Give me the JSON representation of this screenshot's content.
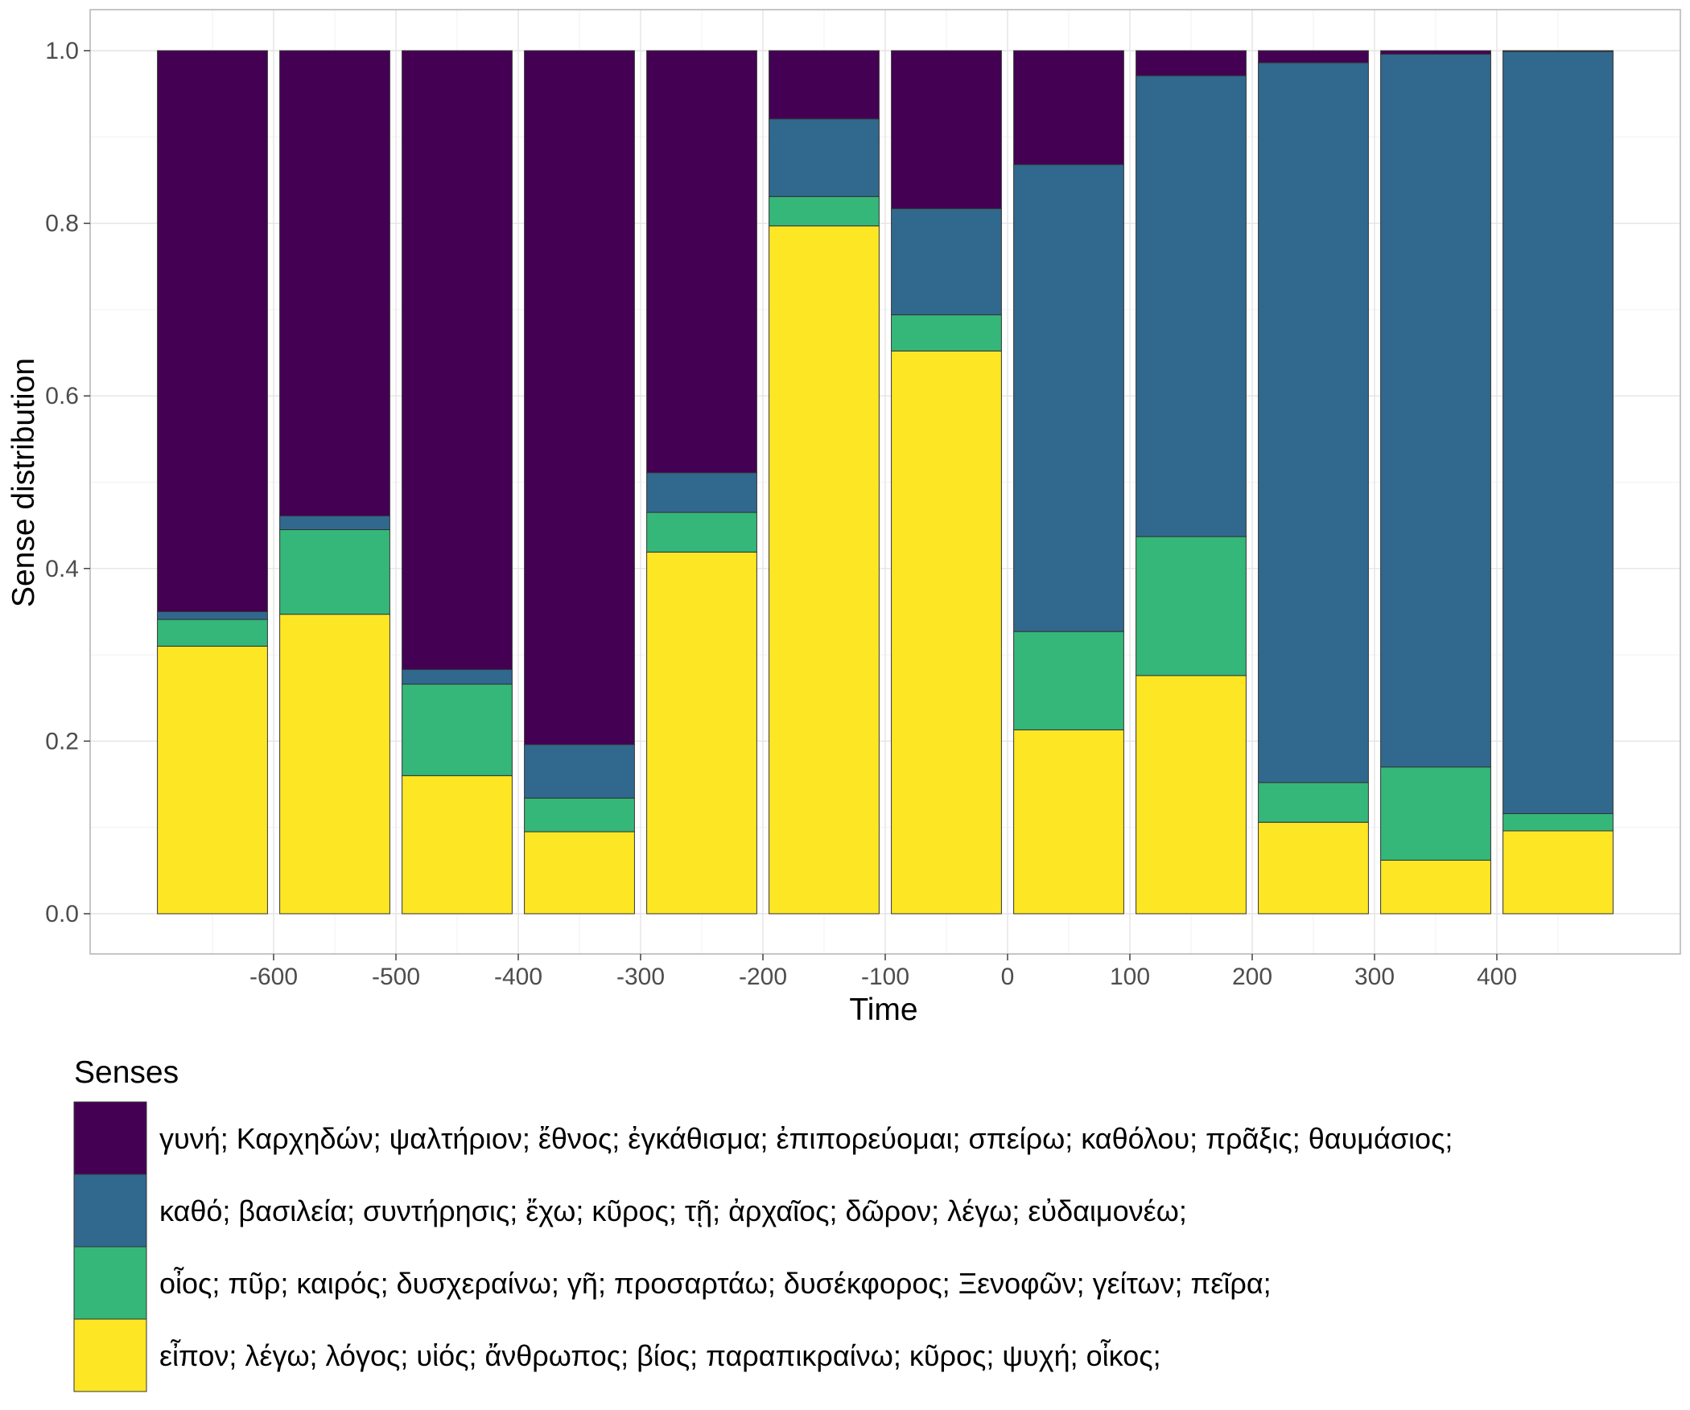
{
  "chart_data": {
    "type": "bar",
    "stacked": true,
    "xlabel": "Time",
    "ylabel": "Sense distribution",
    "ylim": [
      0,
      1
    ],
    "y_ticks": [
      "0.0",
      "0.2",
      "0.4",
      "0.6",
      "0.8",
      "1.0"
    ],
    "x_ticks": [
      "-600",
      "-500",
      "-400",
      "-300",
      "-200",
      "-100",
      "0",
      "100",
      "200",
      "300",
      "400"
    ],
    "x_tick_values": [
      -600,
      -500,
      -400,
      -300,
      -200,
      -100,
      0,
      100,
      200,
      300,
      400
    ],
    "bar_centers": [
      -650,
      -550,
      -450,
      -350,
      -250,
      -150,
      -50,
      50,
      150,
      250,
      350,
      450
    ],
    "bar_width": 90,
    "xlim": [
      -750,
      550
    ],
    "grid": true,
    "legend": {
      "title": "Senses",
      "position": "bottom",
      "entries": [
        {
          "label": "γυνή; Καρχηδών; ψαλτήριον; ἔθνος; ἐγκάθισμα; ἐπιπορεύομαι; σπείρω; καθόλου; πρᾶξις; θαυμάσιος;",
          "color": "#440154"
        },
        {
          "label": "καθό; βασιλεία; συντήρησις; ἔχω; κῦρος; τῇ; ἀρχαῖος; δῶρον; λέγω; εὐδαιμονέω;",
          "color": "#31688e"
        },
        {
          "label": "οἶος; πῦρ; καιρός; δυσχεραίνω; γῆ; προσαρτάω; δυσέκφορος; Ξενοφῶν; γείτων; πεῖρα;",
          "color": "#35b779"
        },
        {
          "label": "εἶπον; λέγω; λόγος; υἱός; ἄνθρωπος; βίος; παραπικραίνω; κῦρος; ψυχή; οἶκος;",
          "color": "#fde725"
        }
      ]
    },
    "series": [
      {
        "color": "#fde725",
        "values": [
          0.31,
          0.347,
          0.16,
          0.095,
          0.419,
          0.797,
          0.652,
          0.213,
          0.276,
          0.106,
          0.062,
          0.096
        ]
      },
      {
        "color": "#35b779",
        "values": [
          0.031,
          0.098,
          0.106,
          0.039,
          0.046,
          0.034,
          0.042,
          0.114,
          0.161,
          0.046,
          0.108,
          0.02
        ]
      },
      {
        "color": "#31688e",
        "values": [
          0.009,
          0.016,
          0.017,
          0.062,
          0.046,
          0.09,
          0.123,
          0.541,
          0.534,
          0.834,
          0.826,
          0.883
        ]
      },
      {
        "color": "#440154",
        "values": [
          0.65,
          0.539,
          0.717,
          0.804,
          0.489,
          0.079,
          0.183,
          0.132,
          0.029,
          0.014,
          0.004,
          0.001
        ]
      }
    ]
  }
}
